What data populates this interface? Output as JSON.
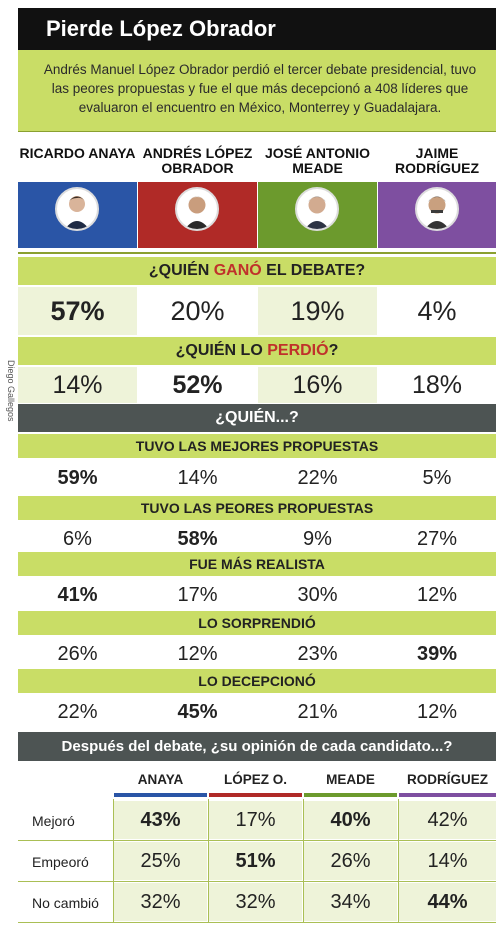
{
  "title": "Pierde López Obrador",
  "intro": "Andrés Manuel López Obrador perdió el tercer debate presidencial, tuvo las peores propuestas y fue el que más decepcionó a 408 líderes que evaluaron el encuentro en México, Monterrey y Guadalajara.",
  "credit": "Diego Gallegos",
  "candidates": [
    {
      "name": "RICARDO ANAYA",
      "color": "#2a55a6"
    },
    {
      "name": "ANDRÉS LÓPEZ OBRADOR",
      "color": "#b02a27"
    },
    {
      "name": "JOSÉ ANTONIO MEADE",
      "color": "#6c9a2d"
    },
    {
      "name": "JAIME RODRÍGUEZ",
      "color": "#7e4fa0"
    }
  ],
  "q1": {
    "pre": "¿QUIÉN ",
    "bold": "GANÓ",
    "post": " EL DEBATE?",
    "values": [
      "57%",
      "20%",
      "19%",
      "4%"
    ]
  },
  "q2": {
    "pre": "¿QUIÉN LO ",
    "bold": "PERDIÓ",
    "post": "?",
    "values": [
      "14%",
      "52%",
      "16%",
      "18%"
    ]
  },
  "q3_header": "¿QUIÉN...?",
  "rows": [
    {
      "label": "TUVO LAS MEJORES PROPUESTAS",
      "values": [
        "59%",
        "14%",
        "22%",
        "5%"
      ]
    },
    {
      "label": "TUVO LAS PEORES PROPUESTAS",
      "values": [
        "6%",
        "58%",
        "9%",
        "27%"
      ]
    },
    {
      "label": "FUE MÁS REALISTA",
      "values": [
        "41%",
        "17%",
        "30%",
        "12%"
      ]
    },
    {
      "label": "LO SORPRENDIÓ",
      "values": [
        "26%",
        "12%",
        "23%",
        "39%"
      ]
    },
    {
      "label": "LO DECEPCIONÓ",
      "values": [
        "22%",
        "45%",
        "21%",
        "12%"
      ]
    }
  ],
  "opinion_header": "Después del debate, ¿su opinión de cada candidato...?",
  "opinion_columns": [
    "ANAYA",
    "LÓPEZ O.",
    "MEADE",
    "RODRÍGUEZ"
  ],
  "opinion_rows": [
    {
      "label": "Mejoró",
      "values": [
        "43%",
        "17%",
        "40%",
        "42%"
      ]
    },
    {
      "label": "Empeoró",
      "values": [
        "25%",
        "51%",
        "26%",
        "14%"
      ]
    },
    {
      "label": "No cambió",
      "values": [
        "32%",
        "32%",
        "34%",
        "44%"
      ]
    }
  ],
  "chart_data": {
    "type": "table",
    "title": "Pierde López Obrador",
    "categories": [
      "RICARDO ANAYA",
      "ANDRÉS LÓPEZ OBRADOR",
      "JOSÉ ANTONIO MEADE",
      "JAIME RODRÍGUEZ"
    ],
    "series": [
      {
        "name": "¿QUIÉN GANÓ EL DEBATE?",
        "values": [
          57,
          20,
          19,
          4
        ]
      },
      {
        "name": "¿QUIÉN LO PERDIÓ?",
        "values": [
          14,
          52,
          16,
          18
        ]
      },
      {
        "name": "TUVO LAS MEJORES PROPUESTAS",
        "values": [
          59,
          14,
          22,
          5
        ]
      },
      {
        "name": "TUVO LAS PEORES PROPUESTAS",
        "values": [
          6,
          58,
          9,
          27
        ]
      },
      {
        "name": "FUE MÁS REALISTA",
        "values": [
          41,
          17,
          30,
          12
        ]
      },
      {
        "name": "LO SORPRENDIÓ",
        "values": [
          26,
          12,
          23,
          39
        ]
      },
      {
        "name": "LO DECEPCIONÓ",
        "values": [
          22,
          45,
          21,
          12
        ]
      },
      {
        "name": "Mejoró",
        "values": [
          43,
          17,
          40,
          42
        ]
      },
      {
        "name": "Empeoró",
        "values": [
          25,
          51,
          26,
          14
        ]
      },
      {
        "name": "No cambió",
        "values": [
          32,
          32,
          34,
          44
        ]
      }
    ]
  }
}
